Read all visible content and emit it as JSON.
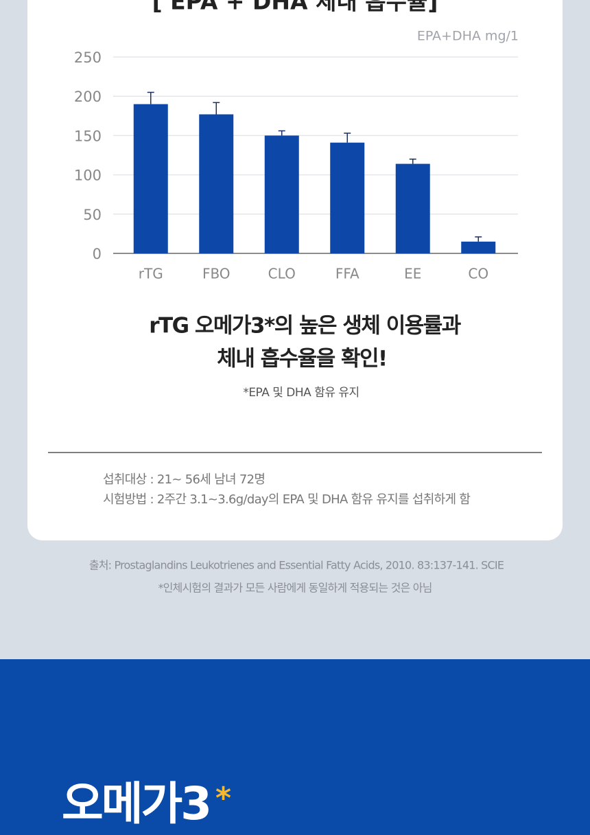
{
  "chart_data": {
    "type": "bar",
    "title": "[ EPA + DHA 체내 흡수율]",
    "unit_label": "EPA+DHA mg/1",
    "categories": [
      "rTG",
      "FBO",
      "CLO",
      "FFA",
      "EE",
      "CO"
    ],
    "values": [
      190,
      177,
      150,
      141,
      114,
      15
    ],
    "errors": [
      15,
      15,
      6,
      12,
      6,
      6
    ],
    "color": "#0d47a8",
    "error_color": "#1b2f5e",
    "ylim": [
      0,
      250
    ],
    "yticks": [
      0,
      50,
      100,
      150,
      200,
      250
    ],
    "grid": true
  },
  "headline": [
    "rTG 오메가3*의 높은 생체 이용률과",
    "체내 흡수율을 확인!"
  ],
  "headline_note": "*EPA 및 DHA 함유 유지",
  "study": [
    "섭취대상 : 21~ 56세 남녀 72명",
    "시험방법 : 2주간 3.1~3.6g/day의 EPA 및 DHA 함유 유지를 섭취하게 함"
  ],
  "source": [
    "출처: Prostaglandins Leukotrienes and Essential Fatty Acids, 2010. 83:137-141. SCIE",
    "*인체시험의 결과가 모든 사람에게 동일하게 적용되는 것은 아님"
  ],
  "banner": {
    "title": "오메가3",
    "mark": "*"
  }
}
